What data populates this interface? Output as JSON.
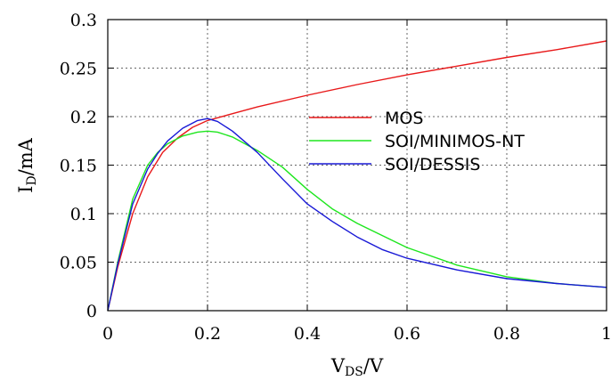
{
  "chart_data": {
    "type": "line",
    "xlabel": {
      "main": "V",
      "sub": "DS",
      "rest": "/V"
    },
    "ylabel": {
      "main": "I",
      "sub": "D",
      "rest": "/mA"
    },
    "xlim": [
      0,
      1
    ],
    "ylim": [
      0,
      0.3
    ],
    "x_ticks": [
      0,
      0.2,
      0.4,
      0.6,
      0.8,
      1
    ],
    "x_tick_labels": [
      "0",
      "0.2",
      "0.4",
      "0.6",
      "0.8",
      "1"
    ],
    "y_ticks": [
      0,
      0.05,
      0.1,
      0.15,
      0.2,
      0.25,
      0.3
    ],
    "y_tick_labels": [
      "0",
      "0.05",
      "0.1",
      "0.15",
      "0.2",
      "0.25",
      "0.3"
    ],
    "grid": true,
    "legend_position": "right",
    "series": [
      {
        "name": "MOS",
        "color": "#e8191a",
        "x": [
          0,
          0.02,
          0.05,
          0.08,
          0.11,
          0.14,
          0.17,
          0.2,
          0.25,
          0.3,
          0.4,
          0.5,
          0.6,
          0.7,
          0.8,
          0.9,
          1.0
        ],
        "y": [
          0,
          0.045,
          0.1,
          0.138,
          0.163,
          0.178,
          0.189,
          0.196,
          0.203,
          0.21,
          0.222,
          0.233,
          0.243,
          0.252,
          0.261,
          0.269,
          0.278
        ]
      },
      {
        "name": "SOI/MINIMOS-NT",
        "color": "#1ee61e",
        "x": [
          0,
          0.02,
          0.05,
          0.08,
          0.1,
          0.12,
          0.15,
          0.18,
          0.2,
          0.22,
          0.25,
          0.3,
          0.35,
          0.4,
          0.45,
          0.5,
          0.6,
          0.7,
          0.8,
          0.9,
          1.0
        ],
        "y": [
          0,
          0.05,
          0.115,
          0.15,
          0.163,
          0.172,
          0.18,
          0.184,
          0.185,
          0.184,
          0.179,
          0.165,
          0.148,
          0.125,
          0.105,
          0.09,
          0.065,
          0.047,
          0.035,
          0.028,
          0.024
        ]
      },
      {
        "name": "SOI/DESSIS",
        "color": "#1818d6",
        "x": [
          0,
          0.02,
          0.05,
          0.08,
          0.1,
          0.12,
          0.15,
          0.18,
          0.2,
          0.22,
          0.25,
          0.3,
          0.35,
          0.4,
          0.45,
          0.5,
          0.55,
          0.6,
          0.7,
          0.8,
          0.9,
          1.0
        ],
        "y": [
          0,
          0.048,
          0.11,
          0.146,
          0.162,
          0.175,
          0.188,
          0.196,
          0.198,
          0.195,
          0.185,
          0.163,
          0.136,
          0.11,
          0.092,
          0.076,
          0.063,
          0.054,
          0.042,
          0.033,
          0.028,
          0.024
        ]
      }
    ]
  }
}
